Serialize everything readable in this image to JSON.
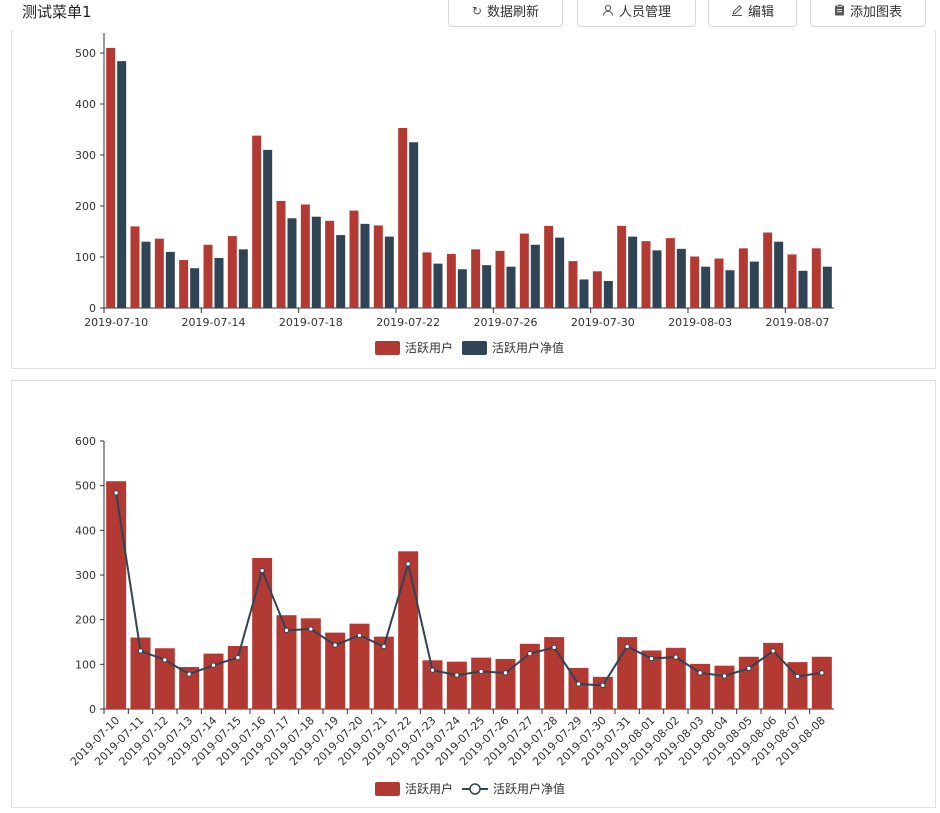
{
  "header": {
    "title": "测试菜单1",
    "buttons": [
      {
        "label": "数据刷新",
        "icon": "refresh-icon"
      },
      {
        "label": "人员管理",
        "icon": "user-icon"
      },
      {
        "label": "编辑",
        "icon": "edit-icon"
      },
      {
        "label": "添加图表",
        "icon": "clipboard-icon"
      }
    ]
  },
  "colors": {
    "bar": "#b33a32",
    "line": "#2f4454",
    "axis": "#333333"
  },
  "chart_data": [
    {
      "type": "bar",
      "ylim": [
        0,
        500
      ],
      "yticks": [
        0,
        100,
        200,
        300,
        400,
        500
      ],
      "categories": [
        "2019-07-10",
        "2019-07-11",
        "2019-07-12",
        "2019-07-13",
        "2019-07-14",
        "2019-07-15",
        "2019-07-16",
        "2019-07-17",
        "2019-07-18",
        "2019-07-19",
        "2019-07-20",
        "2019-07-21",
        "2019-07-22",
        "2019-07-23",
        "2019-07-24",
        "2019-07-25",
        "2019-07-26",
        "2019-07-27",
        "2019-07-28",
        "2019-07-29",
        "2019-07-30",
        "2019-07-31",
        "2019-08-01",
        "2019-08-02",
        "2019-08-03",
        "2019-08-04",
        "2019-08-05",
        "2019-08-06",
        "2019-08-07",
        "2019-08-08"
      ],
      "xtick_labels": [
        "2019-07-10",
        "2019-07-14",
        "2019-07-18",
        "2019-07-22",
        "2019-07-26",
        "2019-07-30",
        "2019-08-03",
        "2019-08-07"
      ],
      "series": [
        {
          "name": "活跃用户",
          "values": [
            510,
            160,
            136,
            94,
            124,
            141,
            338,
            210,
            203,
            171,
            191,
            162,
            353,
            109,
            106,
            115,
            112,
            146,
            161,
            92,
            72,
            161,
            131,
            137,
            101,
            97,
            117,
            148,
            105,
            117
          ]
        },
        {
          "name": "活跃用户净值",
          "values": [
            484,
            130,
            110,
            78,
            98,
            115,
            310,
            176,
            179,
            143,
            165,
            140,
            325,
            87,
            76,
            84,
            81,
            124,
            138,
            56,
            53,
            140,
            113,
            116,
            81,
            74,
            91,
            130,
            73,
            81
          ]
        }
      ],
      "legend": "bottom-center"
    },
    {
      "type": "bar+line",
      "ylim": [
        0,
        600
      ],
      "yticks": [
        0,
        100,
        200,
        300,
        400,
        500,
        600
      ],
      "categories": [
        "2019-07-10",
        "2019-07-11",
        "2019-07-12",
        "2019-07-13",
        "2019-07-14",
        "2019-07-15",
        "2019-07-16",
        "2019-07-17",
        "2019-07-18",
        "2019-07-19",
        "2019-07-20",
        "2019-07-21",
        "2019-07-22",
        "2019-07-23",
        "2019-07-24",
        "2019-07-25",
        "2019-07-26",
        "2019-07-27",
        "2019-07-28",
        "2019-07-29",
        "2019-07-30",
        "2019-07-31",
        "2019-08-01",
        "2019-08-02",
        "2019-08-03",
        "2019-08-04",
        "2019-08-05",
        "2019-08-06",
        "2019-08-07",
        "2019-08-08"
      ],
      "series": [
        {
          "name": "活跃用户",
          "kind": "bar",
          "values": [
            510,
            160,
            136,
            94,
            124,
            141,
            338,
            210,
            203,
            171,
            191,
            162,
            353,
            109,
            106,
            115,
            112,
            146,
            161,
            92,
            72,
            161,
            131,
            137,
            101,
            97,
            117,
            148,
            105,
            117
          ]
        },
        {
          "name": "活跃用户净值",
          "kind": "line",
          "values": [
            484,
            130,
            110,
            78,
            98,
            115,
            310,
            176,
            179,
            143,
            165,
            140,
            325,
            87,
            76,
            84,
            81,
            124,
            138,
            56,
            53,
            140,
            113,
            116,
            81,
            74,
            91,
            130,
            73,
            81
          ]
        }
      ],
      "legend": "bottom-center"
    }
  ]
}
